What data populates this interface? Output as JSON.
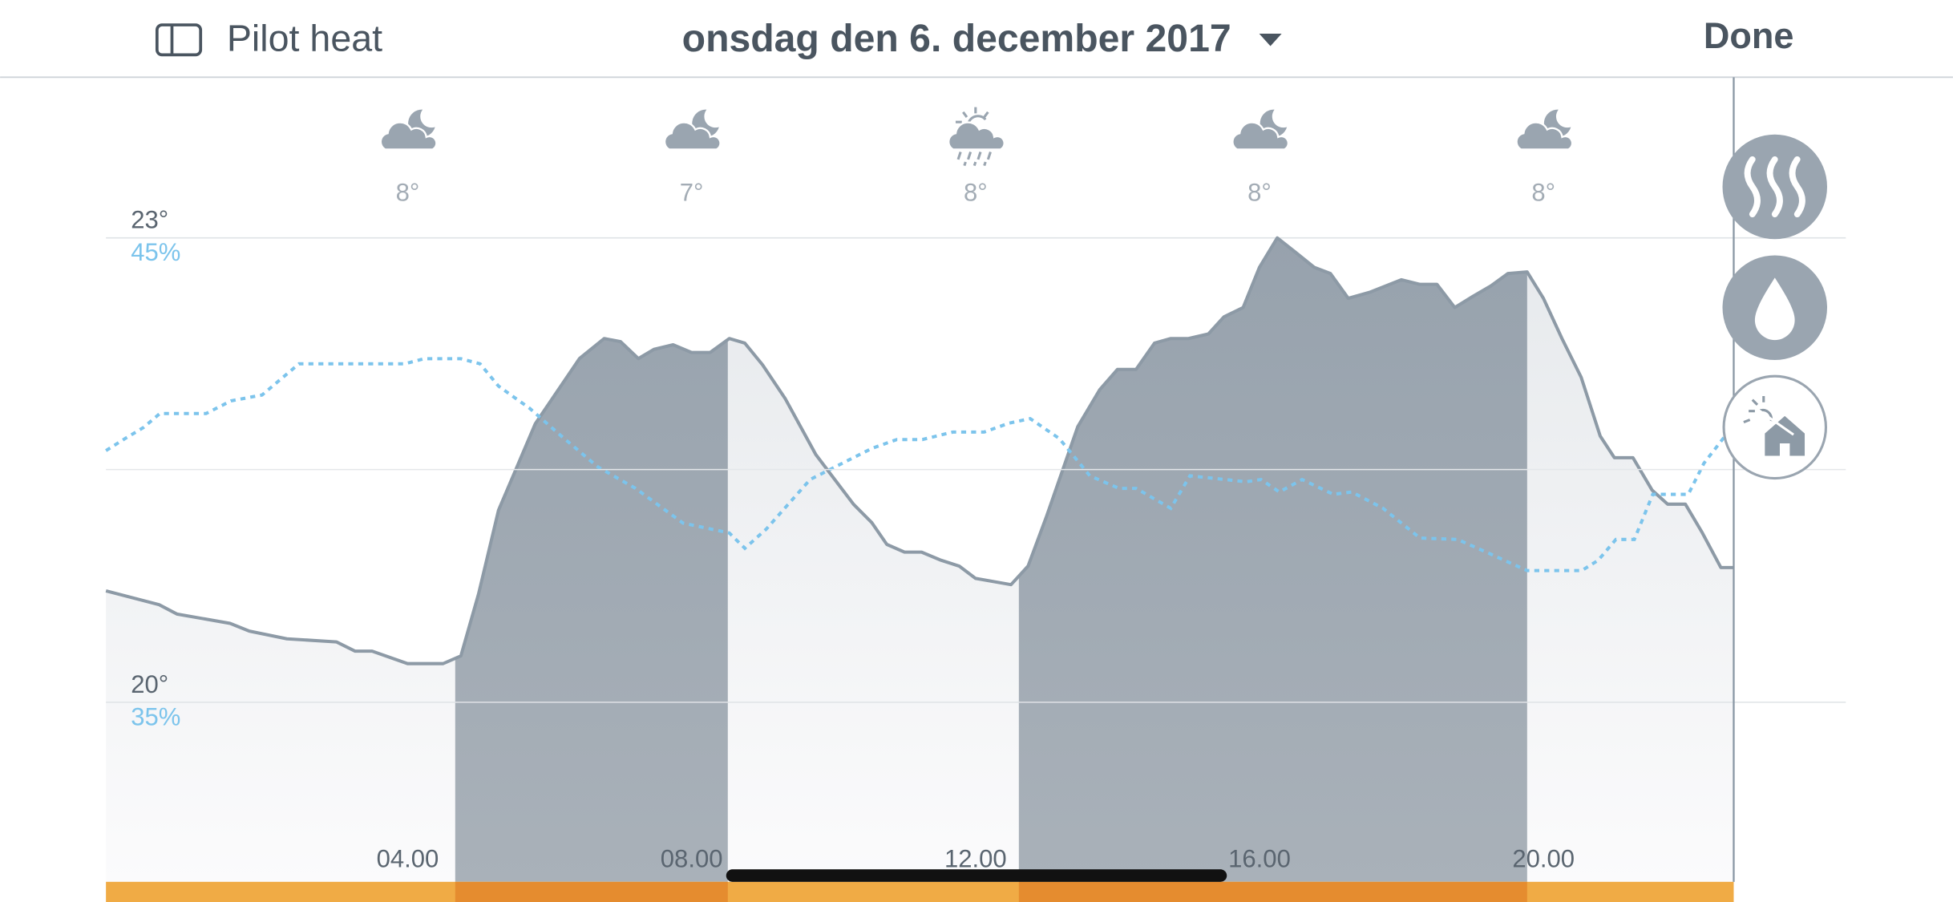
{
  "header": {
    "device": "Pilot heat",
    "date": "onsdag den 6. december 2017",
    "done": "Done"
  },
  "chart_data": {
    "type": "line",
    "xlim": [
      -0.25,
      22.68
    ],
    "xticks": [
      {
        "value": 4,
        "label": "04.00"
      },
      {
        "value": 8,
        "label": "08.00"
      },
      {
        "value": 12,
        "label": "12.00"
      },
      {
        "value": 16,
        "label": "16.00"
      },
      {
        "value": 20,
        "label": "20.00"
      }
    ],
    "ylim": [
      18.84,
      23
    ],
    "yticks": [
      {
        "value": 20,
        "label": "20°"
      },
      {
        "value": 23,
        "label": "23°"
      }
    ],
    "y2lim": [
      31.14,
      45
    ],
    "y2ticks": [
      {
        "value": 35,
        "label": "35%"
      },
      {
        "value": 45,
        "label": "45%"
      }
    ],
    "grid": true,
    "weather_labels": [
      "8°",
      "7°",
      "8°",
      "8°",
      "8°"
    ],
    "weather_icons": [
      "cloud-moon",
      "cloud-moon",
      "sun-rain",
      "cloud-moon",
      "cloud-moon"
    ],
    "heating_periods": [
      [
        4.67,
        8.51
      ],
      [
        12.61,
        19.77
      ]
    ],
    "series": [
      {
        "color": "#8d9aa6",
        "axis": "y",
        "x": [
          -0.25,
          0.5,
          0.75,
          1.5,
          1.77,
          2.3,
          3.0,
          3.26,
          3.5,
          4.0,
          4.5,
          4.75,
          5.0,
          5.28,
          5.8,
          6.42,
          6.77,
          7.0,
          7.25,
          7.47,
          7.74,
          8.0,
          8.26,
          8.53,
          8.75,
          9.0,
          9.32,
          9.75,
          10.28,
          10.54,
          10.75,
          11.0,
          11.24,
          11.5,
          11.77,
          12.0,
          12.5,
          12.74,
          13.0,
          13.44,
          13.75,
          14.0,
          14.26,
          14.52,
          14.75,
          15.0,
          15.28,
          15.5,
          15.77,
          16.0,
          16.25,
          16.5,
          16.77,
          17.0,
          17.25,
          17.56,
          18.0,
          18.26,
          18.5,
          18.75,
          19.0,
          19.26,
          19.5,
          19.77,
          20.0,
          20.26,
          20.53,
          20.8,
          21.0,
          21.26,
          21.53,
          21.75,
          22.0,
          22.23,
          22.5,
          22.68
        ],
        "values": [
          20.72,
          20.63,
          20.57,
          20.51,
          20.46,
          20.41,
          20.39,
          20.33,
          20.33,
          20.25,
          20.25,
          20.3,
          20.7,
          21.24,
          21.8,
          22.22,
          22.35,
          22.33,
          22.22,
          22.28,
          22.31,
          22.26,
          22.26,
          22.35,
          22.32,
          22.18,
          21.96,
          21.6,
          21.28,
          21.16,
          21.02,
          20.97,
          20.97,
          20.92,
          20.88,
          20.8,
          20.76,
          20.88,
          21.2,
          21.78,
          22.02,
          22.15,
          22.15,
          22.32,
          22.35,
          22.35,
          22.38,
          22.49,
          22.55,
          22.81,
          23.0,
          22.91,
          22.81,
          22.77,
          22.61,
          22.65,
          22.73,
          22.7,
          22.7,
          22.55,
          22.62,
          22.69,
          22.77,
          22.78,
          22.61,
          22.35,
          22.1,
          21.72,
          21.58,
          21.58,
          21.37,
          21.28,
          21.28,
          21.1,
          20.87,
          20.87
        ]
      },
      {
        "color": "#7cc4ec",
        "axis": "y2",
        "x": [
          -0.25,
          0.02,
          0.28,
          0.51,
          1.16,
          1.51,
          1.95,
          2.47,
          3.96,
          4.23,
          4.75,
          5.02,
          5.28,
          5.72,
          6.16,
          6.68,
          7.21,
          7.88,
          8.53,
          8.75,
          9.05,
          9.67,
          10.02,
          10.54,
          10.89,
          11.25,
          11.68,
          12.12,
          12.47,
          12.77,
          13.18,
          13.61,
          14.02,
          14.26,
          14.75,
          15.02,
          15.81,
          16.02,
          16.28,
          16.6,
          17.04,
          17.3,
          17.74,
          18.26,
          18.79,
          19.26,
          19.77,
          20.54,
          20.77,
          21.02,
          21.28,
          21.54,
          22.04,
          22.26,
          22.56
        ],
        "values": [
          40.42,
          40.68,
          40.92,
          41.22,
          41.22,
          41.49,
          41.62,
          42.29,
          42.29,
          42.4,
          42.4,
          42.29,
          41.81,
          41.33,
          40.74,
          40.07,
          39.61,
          38.86,
          38.65,
          38.32,
          38.73,
          39.8,
          40.07,
          40.47,
          40.66,
          40.66,
          40.82,
          40.82,
          41.01,
          41.11,
          40.68,
          39.88,
          39.61,
          39.61,
          39.18,
          39.88,
          39.75,
          39.8,
          39.53,
          39.8,
          39.48,
          39.53,
          39.18,
          38.54,
          38.51,
          38.19,
          37.84,
          37.84,
          38.06,
          38.51,
          38.51,
          39.48,
          39.48,
          40.15,
          40.74
        ]
      }
    ]
  }
}
